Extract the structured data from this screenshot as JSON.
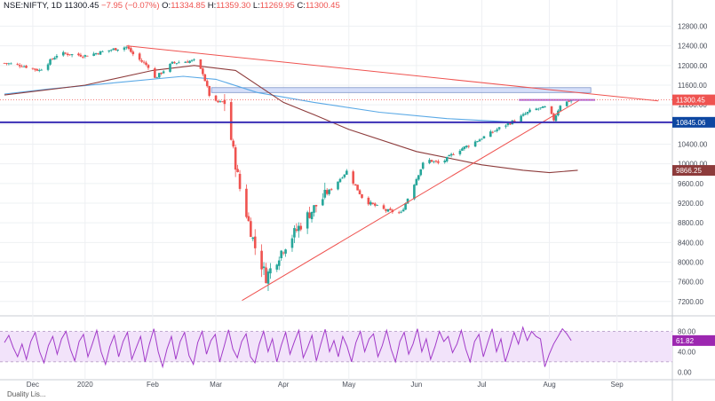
{
  "header": {
    "symbol": "NSE:NIFTY, 1D",
    "last": "11300.45",
    "change": "−7.95 (−0.07%)",
    "o_label": "O:",
    "o_val": "11334.85",
    "h_label": "H:",
    "h_val": "11359.30",
    "l_label": "L:",
    "l_val": "11269.95",
    "c_label": "C:",
    "c_val": "11300.45"
  },
  "bottom_label": "Duality Lis...",
  "colors": {
    "up": "#26a69a",
    "down": "#ef5350",
    "ma_short": "#5aa9e6",
    "ma_long": "#8d3b3b",
    "trend": "#ef5350",
    "hline": "#3a2fb5",
    "resist": "#b26bd6",
    "zone": "#c5d2f6",
    "rsi": "#a23bc9",
    "rsi_band": "#f2e3fa",
    "price_badge": "#ef5350",
    "level_badge": "#0d47a1",
    "ma_badge": "#8d3b3b",
    "rsi_badge": "#9c27b0"
  },
  "chart_data": [
    {
      "type": "candlestick",
      "title": "NSE:NIFTY, 1D",
      "x_ticks": [
        "Dec",
        "2020",
        "Feb",
        "Mar",
        "Apr",
        "May",
        "Jun",
        "Jul",
        "Aug",
        "Sep"
      ],
      "y_ticks": [
        12800,
        12400,
        12000,
        11600,
        11200,
        10800,
        10400,
        10000,
        9600,
        9200,
        8800,
        8400,
        8000,
        7600,
        7200
      ],
      "y_tick_labels": [
        "12800.00",
        "12400.00",
        "12000.00",
        "11600.00",
        "11200.00",
        "10800.00",
        "10400.00",
        "10000.00",
        "9600.00",
        "9200.00",
        "8800.00",
        "8400.00",
        "8000.00",
        "7600.00",
        "7200.00"
      ],
      "ylim": [
        6980,
        13080
      ],
      "price_badges": [
        {
          "value": 11300.45,
          "label": "11300.45"
        },
        {
          "value": 10845.06,
          "label": "10845.06"
        },
        {
          "value": 9866.25,
          "label": "9866.25"
        }
      ],
      "anchors": [
        [
          "Nov 25",
          12050
        ],
        [
          "Dec 3",
          12000
        ],
        [
          "Dec 11",
          11900
        ],
        [
          "Dec 20",
          12250
        ],
        [
          "Jan 1",
          12200
        ],
        [
          "Jan 14",
          12330
        ],
        [
          "Jan 20",
          12380
        ],
        [
          "Jan 24",
          12180
        ],
        [
          "Jan 31",
          11950
        ],
        [
          "Feb 1",
          11700
        ],
        [
          "Feb 10",
          12050
        ],
        [
          "Feb 20",
          12100
        ],
        [
          "Feb 24",
          11850
        ],
        [
          "Feb 28",
          11250
        ],
        [
          "Mar 5",
          11250
        ],
        [
          "Mar 12",
          9500
        ],
        [
          "Mar 19",
          8300
        ],
        [
          "Mar 24",
          7700
        ],
        [
          "Apr 1",
          8300
        ],
        [
          "Apr 13",
          9000
        ],
        [
          "Apr 30",
          9850
        ],
        [
          "May 8",
          9250
        ],
        [
          "May 18",
          9050
        ],
        [
          "May 25",
          9000
        ],
        [
          "Jun 5",
          10100
        ],
        [
          "Jun 12",
          10000
        ],
        [
          "Jun 19",
          10250
        ],
        [
          "Jun 26",
          10400
        ],
        [
          "Jul 10",
          10750
        ],
        [
          "Jul 17",
          10900
        ],
        [
          "Jul 24",
          11100
        ],
        [
          "Jul 31",
          11150
        ],
        [
          "Aug 3",
          10900
        ],
        [
          "Aug 6",
          11200
        ],
        [
          "Aug 11",
          11300
        ]
      ],
      "sma_short": [
        [
          "Nov 25",
          11420
        ],
        [
          "Dec 15",
          11520
        ],
        [
          "Jan 15",
          11650
        ],
        [
          "Feb 15",
          11780
        ],
        [
          "Mar 1",
          11720
        ],
        [
          "Mar 20",
          11450
        ],
        [
          "Apr 15",
          11250
        ],
        [
          "May 15",
          11050
        ],
        [
          "Jun 15",
          10920
        ],
        [
          "Jul 15",
          10850
        ],
        [
          "Aug 14",
          10845
        ]
      ],
      "sma_long": [
        [
          "Nov 25",
          11400
        ],
        [
          "Jan 1",
          11600
        ],
        [
          "Feb 1",
          11900
        ],
        [
          "Feb 20",
          12000
        ],
        [
          "Mar 10",
          11900
        ],
        [
          "Apr 1",
          11250
        ],
        [
          "Apr 15",
          11000
        ],
        [
          "May 1",
          10700
        ],
        [
          "Jun 1",
          10250
        ],
        [
          "Jul 1",
          9980
        ],
        [
          "Jul 20",
          9870
        ],
        [
          "Aug 1",
          9820
        ],
        [
          "Aug 14",
          9870
        ]
      ],
      "trendlines": [
        {
          "from": [
            "Jan 20",
            12400
          ],
          "to": [
            "Sep 20",
            11280
          ],
          "kind": "resistance-falling"
        },
        {
          "from": [
            "Mar 13",
            7220
          ],
          "to": [
            "Aug 15",
            11300
          ],
          "kind": "support-rising"
        }
      ],
      "horizontal_level": 10845.06,
      "resistance_line": {
        "from": "Jul 18",
        "to": "Aug 22",
        "value": 11300
      },
      "zone": {
        "from": "Feb 28",
        "to": "Aug 20",
        "low": 11450,
        "high": 11550
      }
    },
    {
      "type": "line",
      "title": "RSI",
      "y_ticks": [
        80.0,
        40.0,
        0.0
      ],
      "y_tick_labels": [
        "80.00",
        "40.00",
        "0.00"
      ],
      "ylim": [
        -10,
        100
      ],
      "band": [
        20,
        80
      ],
      "last_badge": {
        "value": 61.82,
        "label": "61.82"
      },
      "series": [
        {
          "values": [
            58,
            72,
            48,
            30,
            55,
            25,
            60,
            78,
            40,
            18,
            52,
            70,
            35,
            65,
            80,
            45,
            22,
            60,
            74,
            30,
            55,
            82,
            40,
            15,
            50,
            72,
            30,
            60,
            78,
            25,
            48,
            70,
            20,
            55,
            85,
            40,
            10,
            45,
            70,
            25,
            60,
            78,
            32,
            15,
            58,
            80,
            35,
            62,
            74,
            20,
            50,
            83,
            45,
            28,
            60,
            75,
            30,
            18,
            55,
            80,
            40,
            65,
            20,
            52,
            78,
            35,
            60,
            82,
            28,
            48,
            72,
            22,
            55,
            84,
            40,
            62,
            30,
            70,
            50,
            20,
            58,
            80,
            40,
            65,
            75,
            30,
            52,
            82,
            45,
            20,
            60,
            78,
            35,
            55,
            85,
            40,
            65,
            25,
            50,
            80,
            60,
            70,
            38,
            55,
            82,
            45,
            20,
            60,
            74,
            30,
            58,
            85,
            40,
            65,
            20,
            48,
            78,
            55,
            88,
            62,
            80,
            70,
            65,
            10,
            35,
            55,
            70,
            85,
            75,
            62
          ]
        }
      ]
    }
  ]
}
